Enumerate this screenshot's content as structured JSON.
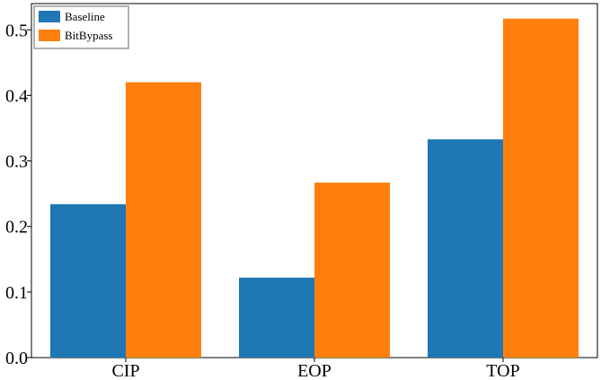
{
  "chart_data": {
    "type": "bar",
    "title": "",
    "xlabel": "",
    "ylabel": "",
    "categories": [
      "CIP",
      "EOP",
      "TOP"
    ],
    "series": [
      {
        "name": "Baseline",
        "color": "#1f77b4",
        "values": [
          0.234,
          0.122,
          0.333
        ]
      },
      {
        "name": "BitBypass",
        "color": "#ff7f0e",
        "values": [
          0.42,
          0.267,
          0.517
        ]
      }
    ],
    "ylim": [
      0.0,
      0.54
    ],
    "yticks": [
      "0.0",
      "0.1",
      "0.2",
      "0.3",
      "0.4",
      "0.5"
    ],
    "grid": false,
    "legend_position": "top-left"
  }
}
